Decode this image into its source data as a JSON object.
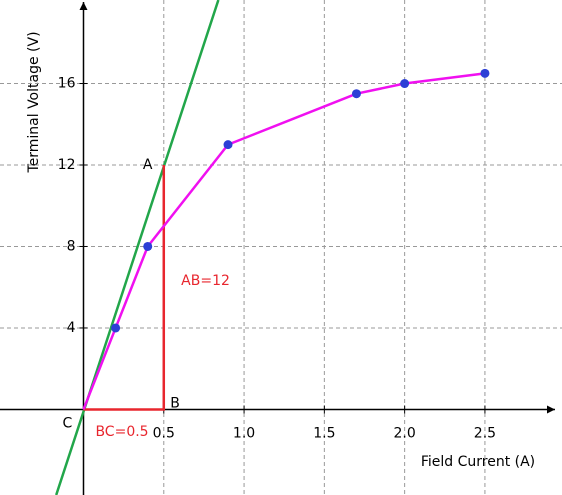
{
  "chart_data": {
    "type": "line",
    "xlabel": "Field Current (A)",
    "ylabel": "Terminal Voltage (V)",
    "xlim": [
      -0.52,
      2.98
    ],
    "ylim": [
      -4.2,
      20.1
    ],
    "xticks": [
      0.5,
      {
        "value": 1.0,
        "label": "1.0"
      },
      1.5,
      {
        "value": 2.0,
        "label": "2.0"
      },
      2.5
    ],
    "yticks": [
      4,
      8,
      12,
      16
    ],
    "grid": true,
    "series": [
      {
        "mode": "line",
        "color": "#22a64a",
        "x": [
          -0.17,
          0.84
        ],
        "values": [
          -4.2,
          20.1
        ]
      },
      {
        "mode": "line",
        "color": "#e8262e",
        "x": [
          0,
          0.5,
          0.5
        ],
        "values": [
          0,
          0,
          12
        ]
      },
      {
        "mode": "line",
        "color": "#f010f0",
        "x": [
          0,
          0.2,
          0.4,
          0.9,
          1.7,
          2.0,
          2.5
        ],
        "values": [
          0,
          4,
          8,
          13,
          15.5,
          16,
          16.5
        ]
      },
      {
        "mode": "markers",
        "color": "#2c3fd6",
        "x": [
          0.2,
          0.4,
          0.9,
          1.7,
          2.0,
          2.5
        ],
        "values": [
          4,
          8,
          13,
          15.5,
          16,
          16.5
        ]
      }
    ],
    "annotations": [
      {
        "text": "A",
        "x": 0.4,
        "y": 12,
        "color": "#000000"
      },
      {
        "text": "B",
        "x": 0.57,
        "y": 0.3,
        "color": "#000000"
      },
      {
        "text": "C",
        "x": -0.1,
        "y": -0.7,
        "color": "#000000"
      },
      {
        "text": "AB=12",
        "x": 0.76,
        "y": 6.3,
        "color": "#e8262e"
      },
      {
        "text": "BC=0.5",
        "x": 0.24,
        "y": -1.1,
        "color": "#e8262e"
      }
    ]
  }
}
